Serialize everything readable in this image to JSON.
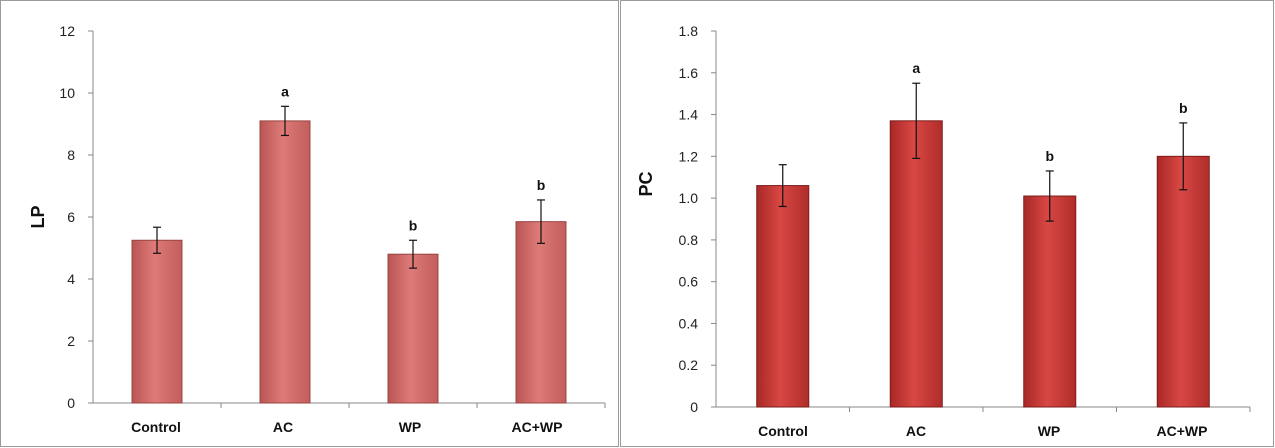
{
  "chart_data": [
    {
      "type": "bar",
      "title": "",
      "xlabel": "",
      "ylabel": "LP",
      "ylim": [
        0,
        12
      ],
      "yticks": [
        "0",
        "2",
        "4",
        "6",
        "8",
        "10",
        "12"
      ],
      "categories": [
        "Control",
        "AC",
        "WP",
        "AC+WP"
      ],
      "values": [
        5.25,
        9.1,
        4.8,
        5.85
      ],
      "errors": [
        0.42,
        0.47,
        0.45,
        0.7
      ],
      "annotations": [
        "",
        "a",
        "b",
        "b"
      ],
      "color": "#d97270",
      "grid": false
    },
    {
      "type": "bar",
      "title": "",
      "xlabel": "",
      "ylabel": "PC",
      "ylim": [
        0,
        1.8
      ],
      "yticks": [
        "0",
        "0.2",
        "0.4",
        "0.6",
        "0.8",
        "1.0",
        "1.2",
        "1.4",
        "1.6",
        "1.8"
      ],
      "categories": [
        "Control",
        "AC",
        "WP",
        "AC+WP"
      ],
      "values": [
        1.06,
        1.37,
        1.01,
        1.2
      ],
      "errors": [
        0.1,
        0.18,
        0.12,
        0.16
      ],
      "annotations": [
        "",
        "a",
        "b",
        "b"
      ],
      "color": "#cf3e3a",
      "grid": false
    }
  ]
}
